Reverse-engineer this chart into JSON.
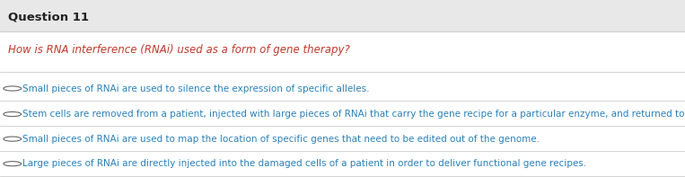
{
  "title": "Question 11",
  "question": "How is RNA interference (RNAi) used as a form of gene therapy?",
  "options": [
    "Small pieces of RNAi are used to silence the expression of specific alleles.",
    "Stem cells are removed from a patient, injected with large pieces of RNAi that carry the gene recipe for a particular enzyme, and returned to the body of the patient.",
    "Small pieces of RNAi are used to map the location of specific genes that need to be edited out of the genome.",
    "Large pieces of RNAi are directly injected into the damaged cells of a patient in order to deliver functional gene recipes."
  ],
  "bg_header": "#e8e8e8",
  "bg_white": "#ffffff",
  "title_color": "#222222",
  "question_color": "#c0392b",
  "option_color": "#2980b9",
  "circle_color": "#666666",
  "line_color": "#cccccc",
  "title_fontsize": 9.5,
  "question_fontsize": 8.5,
  "option_fontsize": 7.5
}
